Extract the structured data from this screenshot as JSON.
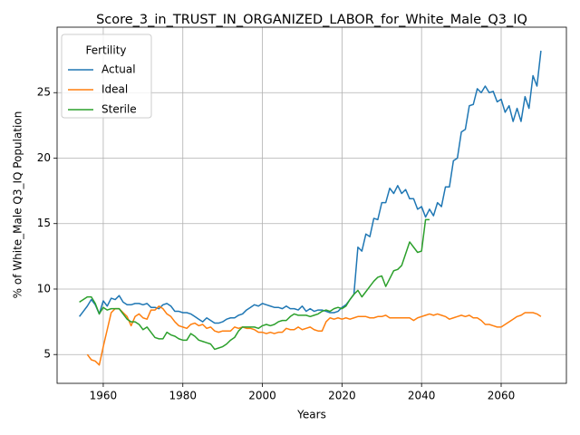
{
  "chart_data": {
    "type": "line",
    "title": "Score_3_in_TRUST_IN_ORGANIZED_LABOR_for_White_Male_Q3_IQ",
    "xlabel": "Years",
    "ylabel": "% of White_Male Q3_IQ Population",
    "legend_title": "Fertility",
    "legend_loc": "upper left",
    "grid": true,
    "xlim": [
      1948.4,
      2076.4
    ],
    "ylim": [
      2.8,
      30
    ],
    "xticks": [
      1960,
      1980,
      2000,
      2020,
      2040,
      2060
    ],
    "yticks": [
      5,
      10,
      15,
      20,
      25
    ],
    "x": [
      1954,
      1955,
      1956,
      1957,
      1958,
      1959,
      1960,
      1961,
      1962,
      1963,
      1964,
      1965,
      1966,
      1967,
      1968,
      1969,
      1970,
      1971,
      1972,
      1973,
      1974,
      1975,
      1976,
      1977,
      1978,
      1979,
      1980,
      1981,
      1982,
      1983,
      1984,
      1985,
      1986,
      1987,
      1988,
      1989,
      1990,
      1991,
      1992,
      1993,
      1994,
      1995,
      1996,
      1997,
      1998,
      1999,
      2000,
      2001,
      2002,
      2003,
      2004,
      2005,
      2006,
      2007,
      2008,
      2009,
      2010,
      2011,
      2012,
      2013,
      2014,
      2015,
      2016,
      2017,
      2018,
      2019,
      2020,
      2021,
      2022,
      2023,
      2024,
      2025,
      2026,
      2027,
      2028,
      2029,
      2030,
      2031,
      2032,
      2033,
      2034,
      2035,
      2036,
      2037,
      2038,
      2039,
      2040,
      2041,
      2042,
      2043,
      2044,
      2045,
      2046,
      2047,
      2048,
      2049,
      2050,
      2051,
      2052,
      2053,
      2054,
      2055,
      2056,
      2057,
      2058,
      2059,
      2060,
      2061,
      2062,
      2063,
      2064,
      2065,
      2066,
      2067,
      2068,
      2069,
      2070
    ],
    "series": [
      {
        "name": "Actual",
        "color": "#1f77b4",
        "values": [
          7.9,
          8.3,
          8.7,
          9.2,
          8.8,
          8.1,
          9.1,
          8.7,
          9.3,
          9.2,
          9.5,
          9.0,
          8.8,
          8.8,
          8.9,
          8.9,
          8.8,
          8.9,
          8.6,
          8.6,
          8.5,
          8.8,
          8.9,
          8.7,
          8.3,
          8.3,
          8.2,
          8.2,
          8.1,
          7.9,
          7.7,
          7.5,
          7.8,
          7.6,
          7.4,
          7.4,
          7.5,
          7.7,
          7.8,
          7.8,
          8.0,
          8.1,
          8.4,
          8.6,
          8.8,
          8.7,
          8.9,
          8.8,
          8.7,
          8.6,
          8.6,
          8.5,
          8.7,
          8.5,
          8.5,
          8.4,
          8.7,
          8.3,
          8.5,
          8.3,
          8.4,
          8.4,
          8.3,
          8.2,
          8.2,
          8.3,
          8.6,
          8.8,
          9.2,
          9.6,
          13.2,
          12.9,
          14.2,
          14.0,
          15.4,
          15.3,
          16.6,
          16.6,
          17.7,
          17.3,
          17.9,
          17.3,
          17.6,
          16.9,
          16.9,
          16.1,
          16.3,
          15.5,
          16.1,
          15.6,
          16.6,
          16.3,
          17.8,
          17.8,
          19.8,
          20.0,
          22.0,
          22.2,
          24.0,
          24.1,
          25.3,
          25.0,
          25.5,
          25.0,
          25.1,
          24.3,
          24.5,
          23.5,
          24.0,
          22.8,
          23.8,
          22.8,
          24.7,
          23.8,
          26.3,
          25.5,
          28.2
        ]
      },
      {
        "name": "Ideal",
        "color": "#ff7f0e",
        "values": [
          null,
          null,
          5.0,
          4.6,
          4.5,
          4.2,
          5.6,
          6.9,
          8.2,
          8.5,
          8.5,
          8.2,
          7.9,
          7.2,
          7.9,
          8.1,
          7.8,
          7.7,
          8.4,
          8.4,
          8.7,
          8.5,
          8.1,
          7.9,
          7.5,
          7.2,
          7.1,
          7.0,
          7.3,
          7.4,
          7.2,
          7.3,
          7.0,
          7.1,
          6.8,
          6.7,
          6.8,
          6.8,
          6.8,
          7.1,
          7.0,
          7.1,
          7.0,
          7.0,
          6.9,
          6.7,
          6.7,
          6.6,
          6.7,
          6.6,
          6.7,
          6.7,
          7.0,
          6.9,
          6.9,
          7.1,
          6.9,
          7.0,
          7.1,
          6.9,
          6.8,
          6.8,
          7.5,
          7.8,
          7.7,
          7.8,
          7.7,
          7.8,
          7.7,
          7.8,
          7.9,
          7.9,
          7.9,
          7.8,
          7.8,
          7.9,
          7.9,
          8.0,
          7.8,
          7.8,
          7.8,
          7.8,
          7.8,
          7.8,
          7.6,
          7.8,
          7.9,
          8.0,
          8.1,
          8.0,
          8.1,
          8.0,
          7.9,
          7.7,
          7.8,
          7.9,
          8.0,
          7.9,
          8.0,
          7.8,
          7.8,
          7.6,
          7.3,
          7.3,
          7.2,
          7.1,
          7.1,
          7.3,
          7.5,
          7.7,
          7.9,
          8.0,
          8.2,
          8.2,
          8.2,
          8.1,
          7.9
        ]
      },
      {
        "name": "Sterile",
        "color": "#2ca02c",
        "values": [
          9.0,
          9.2,
          9.4,
          9.4,
          8.9,
          8.1,
          8.6,
          8.4,
          8.5,
          8.5,
          8.5,
          8.1,
          7.7,
          7.5,
          7.5,
          7.3,
          6.9,
          7.1,
          6.7,
          6.3,
          6.2,
          6.2,
          6.7,
          6.5,
          6.4,
          6.2,
          6.1,
          6.1,
          6.6,
          6.4,
          6.1,
          6.0,
          5.9,
          5.8,
          5.4,
          5.5,
          5.6,
          5.8,
          6.1,
          6.3,
          6.8,
          7.1,
          7.1,
          7.1,
          7.1,
          7.0,
          7.2,
          7.3,
          7.2,
          7.3,
          7.5,
          7.6,
          7.6,
          7.9,
          8.1,
          8.0,
          8.0,
          8.0,
          7.9,
          8.0,
          8.1,
          8.3,
          8.4,
          8.3,
          8.5,
          8.6,
          8.5,
          8.7,
          9.2,
          9.6,
          9.9,
          9.4,
          9.8,
          10.2,
          10.6,
          10.9,
          11.0,
          10.2,
          10.8,
          11.4,
          11.5,
          11.8,
          12.7,
          13.6,
          13.2,
          12.8,
          12.9,
          15.3,
          15.3,
          null,
          null,
          null,
          null,
          null,
          null,
          null,
          null,
          null,
          null,
          null,
          null,
          null,
          null,
          null,
          null,
          null,
          null,
          null,
          null,
          null,
          null,
          null,
          null,
          null,
          null,
          null,
          null
        ]
      }
    ]
  }
}
